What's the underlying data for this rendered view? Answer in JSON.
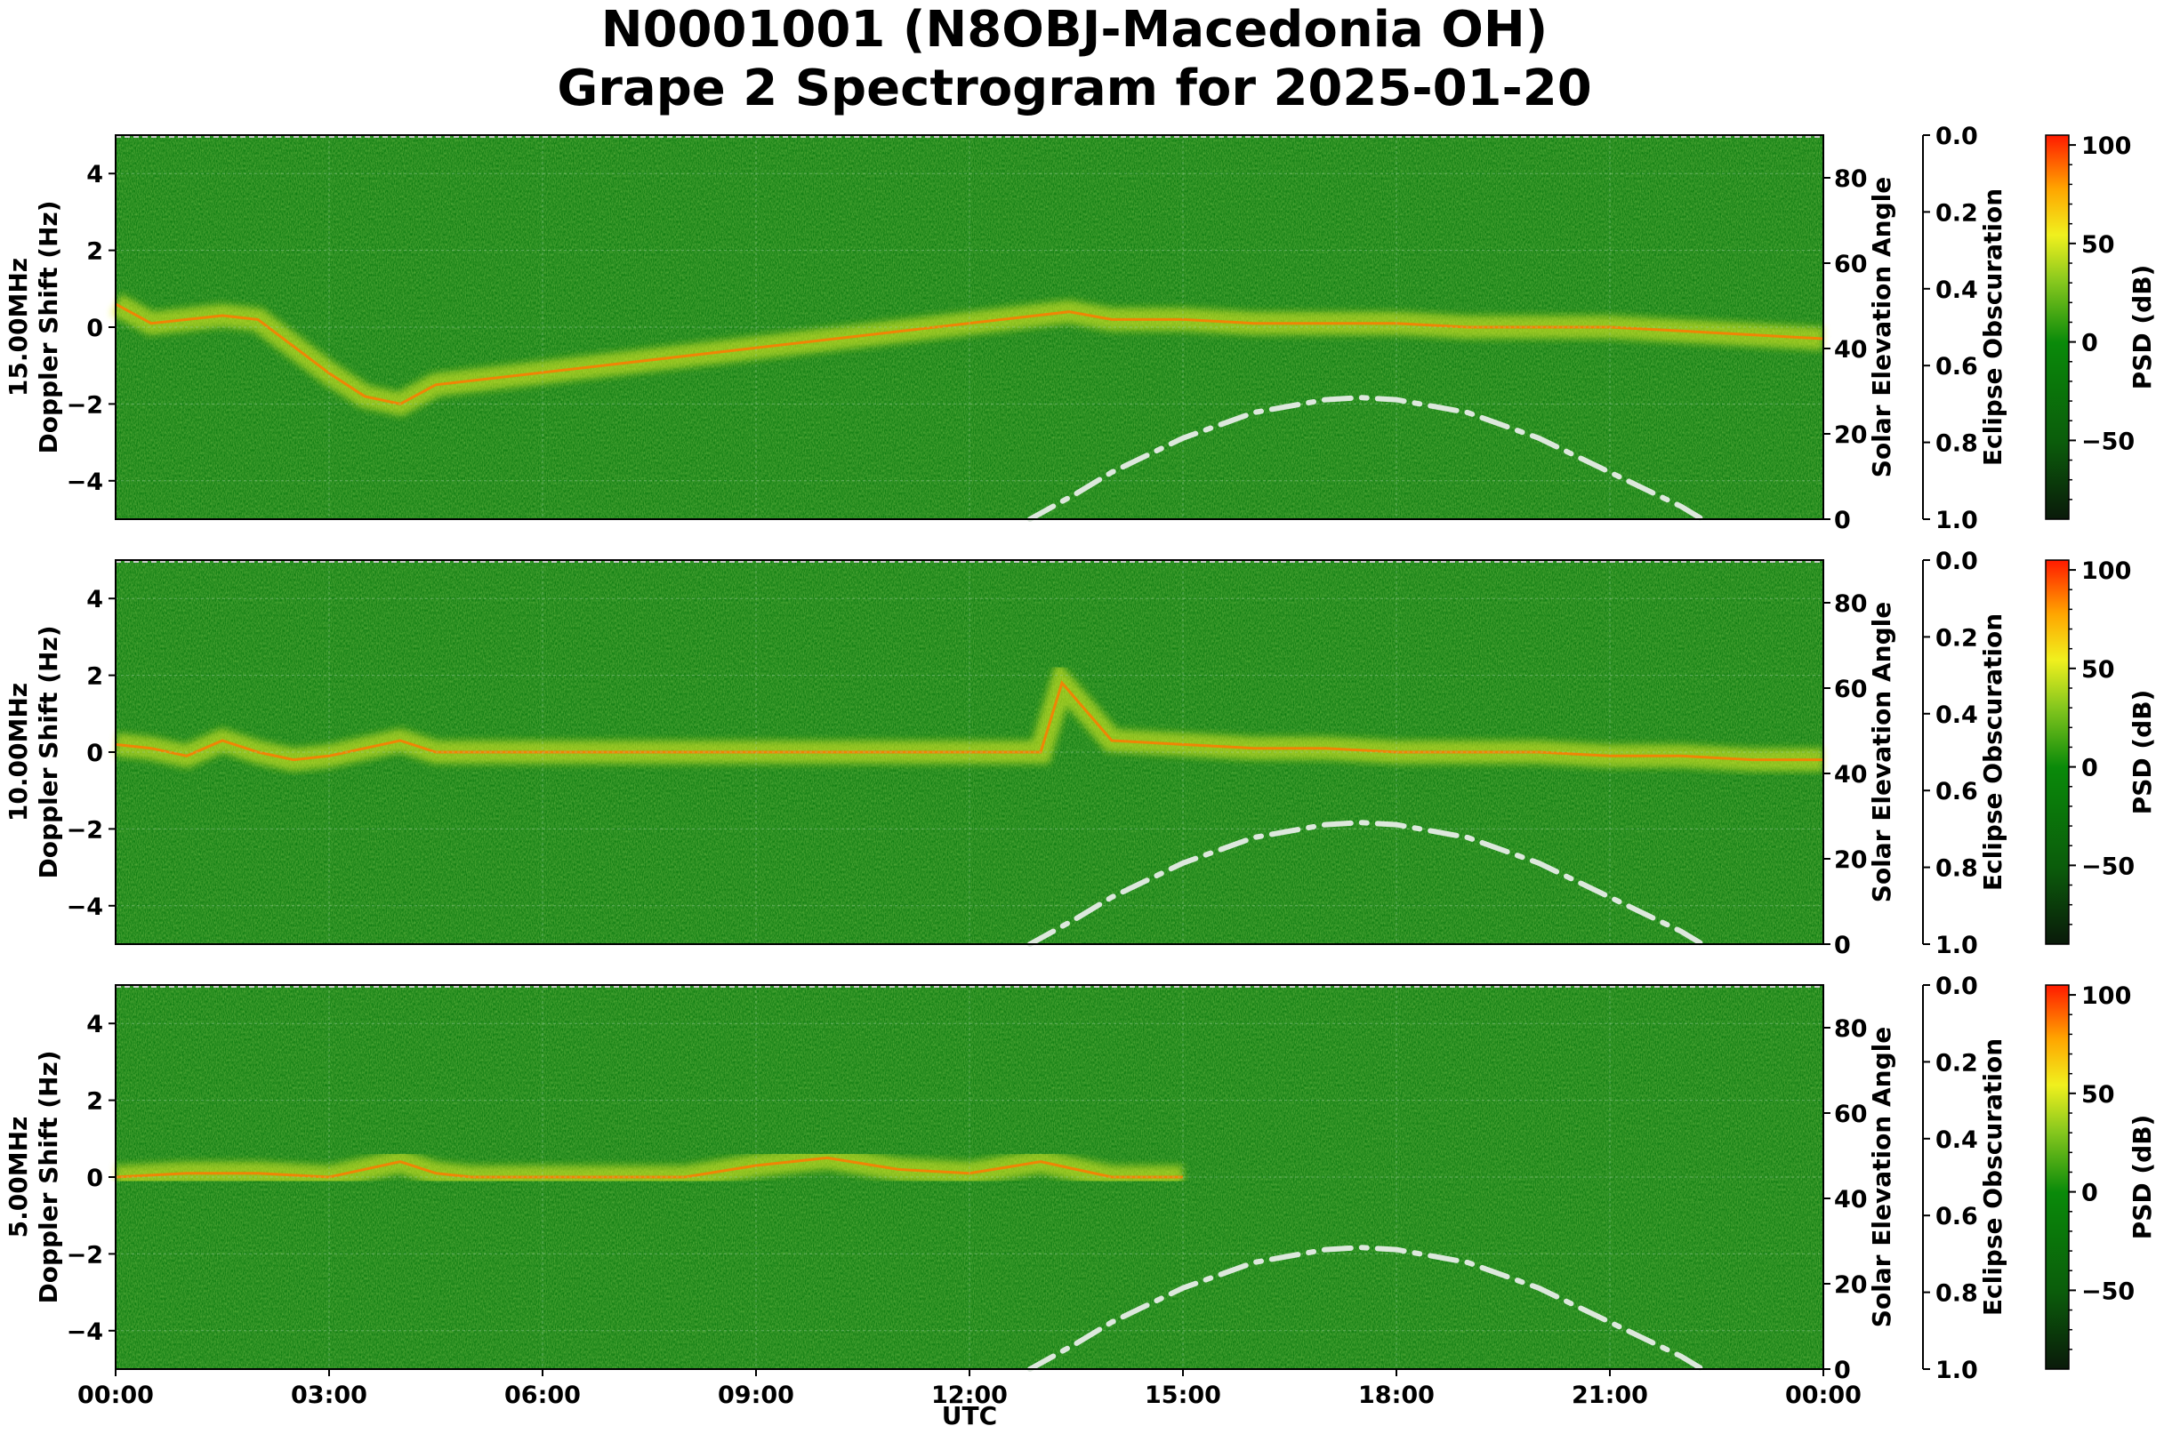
{
  "title": [
    "N0001001 (N8OBJ-Macedonia OH)",
    "Grape 2 Spectrogram for 2025-01-20"
  ],
  "xlabel": "UTC",
  "x_ticks": [
    "00:00",
    "03:00",
    "06:00",
    "09:00",
    "12:00",
    "15:00",
    "18:00",
    "21:00",
    "00:00"
  ],
  "chart_data": [
    {
      "type": "heatmap",
      "panel": "15.00MHz",
      "ylabel": "15.00MHz\nDoppler Shift (Hz)",
      "y_ticks": [
        4,
        2,
        0,
        -2,
        -4
      ],
      "ylim": [
        -5,
        5
      ],
      "xlim": [
        "00:00",
        "24:00"
      ],
      "secondary_axis": {
        "label": "Solar Elevation Angle",
        "ticks": [
          80,
          60,
          40,
          20,
          0
        ],
        "range": [
          0,
          90
        ]
      },
      "tertiary_axis": {
        "label": "Eclipse Obscuration",
        "ticks": [
          "0.0",
          "0.2",
          "0.4",
          "0.6",
          "0.8",
          "1.0"
        ],
        "range": [
          0,
          1
        ]
      },
      "colorbar": {
        "label": "PSD (dB)",
        "ticks": [
          100,
          50,
          0,
          -50
        ],
        "range": [
          -90,
          105
        ]
      },
      "doppler_trace": {
        "x_hours": [
          0,
          0.5,
          1,
          1.5,
          2,
          2.5,
          3,
          3.5,
          4,
          4.5,
          13.4,
          14,
          15,
          16,
          17,
          18,
          19,
          20,
          21,
          22,
          23,
          24
        ],
        "y_hz": [
          0.6,
          0.1,
          0.2,
          0.3,
          0.2,
          -0.5,
          -1.2,
          -1.8,
          -2.0,
          -1.5,
          0.4,
          0.2,
          0.2,
          0.1,
          0.1,
          0.1,
          0.0,
          0.0,
          0.0,
          -0.1,
          -0.2,
          -0.3
        ]
      },
      "solar_elevation": {
        "x_hours": [
          12.85,
          13.5,
          14,
          15,
          16,
          17,
          17.5,
          18,
          19,
          20,
          21,
          22,
          22.3
        ],
        "deg": [
          0,
          6,
          11,
          19,
          25,
          28,
          28.5,
          28,
          25,
          19,
          11,
          3,
          0
        ]
      }
    },
    {
      "type": "heatmap",
      "panel": "10.00MHz",
      "ylabel": "10.00MHz\nDoppler Shift (Hz)",
      "y_ticks": [
        4,
        2,
        0,
        -2,
        -4
      ],
      "ylim": [
        -5,
        5
      ],
      "xlim": [
        "00:00",
        "24:00"
      ],
      "secondary_axis": {
        "label": "Solar Elevation Angle",
        "ticks": [
          80,
          60,
          40,
          20,
          0
        ],
        "range": [
          0,
          90
        ]
      },
      "tertiary_axis": {
        "label": "Eclipse Obscuration",
        "ticks": [
          "0.0",
          "0.2",
          "0.4",
          "0.6",
          "0.8",
          "1.0"
        ],
        "range": [
          0,
          1
        ]
      },
      "colorbar": {
        "label": "PSD (dB)",
        "ticks": [
          100,
          50,
          0,
          -50
        ],
        "range": [
          -90,
          105
        ]
      },
      "doppler_trace": {
        "x_hours": [
          0,
          0.5,
          1,
          1.5,
          2,
          2.5,
          3,
          3.5,
          4,
          4.5,
          5,
          7,
          9,
          11,
          12,
          13,
          13.3,
          14,
          15,
          16,
          17,
          18,
          19,
          20,
          21,
          22,
          23,
          24
        ],
        "y_hz": [
          0.2,
          0.1,
          -0.1,
          0.3,
          0.0,
          -0.2,
          -0.1,
          0.1,
          0.3,
          0.0,
          0.0,
          0.0,
          0.0,
          0.0,
          0.0,
          0.0,
          1.8,
          0.3,
          0.2,
          0.1,
          0.1,
          0.0,
          0.0,
          0.0,
          -0.1,
          -0.1,
          -0.2,
          -0.2
        ]
      },
      "solar_elevation": {
        "x_hours": [
          12.85,
          13.5,
          14,
          15,
          16,
          17,
          17.5,
          18,
          19,
          20,
          21,
          22,
          22.3
        ],
        "deg": [
          0,
          6,
          11,
          19,
          25,
          28,
          28.5,
          28,
          25,
          19,
          11,
          3,
          0
        ]
      }
    },
    {
      "type": "heatmap",
      "panel": "5.00MHz",
      "ylabel": "5.00MHz\nDoppler Shift (Hz)",
      "y_ticks": [
        4,
        2,
        0,
        -2,
        -4
      ],
      "ylim": [
        -5,
        5
      ],
      "xlim": [
        "00:00",
        "24:00"
      ],
      "secondary_axis": {
        "label": "Solar Elevation Angle",
        "ticks": [
          80,
          60,
          40,
          20,
          0
        ],
        "range": [
          0,
          90
        ]
      },
      "tertiary_axis": {
        "label": "Eclipse Obscuration",
        "ticks": [
          "0.0",
          "0.2",
          "0.4",
          "0.6",
          "0.8",
          "1.0"
        ],
        "range": [
          0,
          1
        ]
      },
      "colorbar": {
        "label": "PSD (dB)",
        "ticks": [
          100,
          50,
          0,
          -50
        ],
        "range": [
          -90,
          105
        ]
      },
      "doppler_trace": {
        "x_hours": [
          0,
          1,
          2,
          3,
          4,
          4.5,
          5,
          6,
          7,
          8,
          9,
          10,
          11,
          12,
          13,
          13.5,
          14,
          15
        ],
        "y_hz": [
          0.0,
          0.1,
          0.1,
          0.0,
          0.4,
          0.1,
          0.0,
          0.0,
          0.0,
          0.0,
          0.3,
          0.5,
          0.2,
          0.1,
          0.4,
          0.2,
          0.0,
          0.0
        ]
      },
      "solar_elevation": {
        "x_hours": [
          12.85,
          13.5,
          14,
          15,
          16,
          17,
          17.5,
          18,
          19,
          20,
          21,
          22,
          22.3
        ],
        "deg": [
          0,
          6,
          11,
          19,
          25,
          28,
          28.5,
          28,
          25,
          19,
          11,
          3,
          0
        ]
      }
    }
  ]
}
